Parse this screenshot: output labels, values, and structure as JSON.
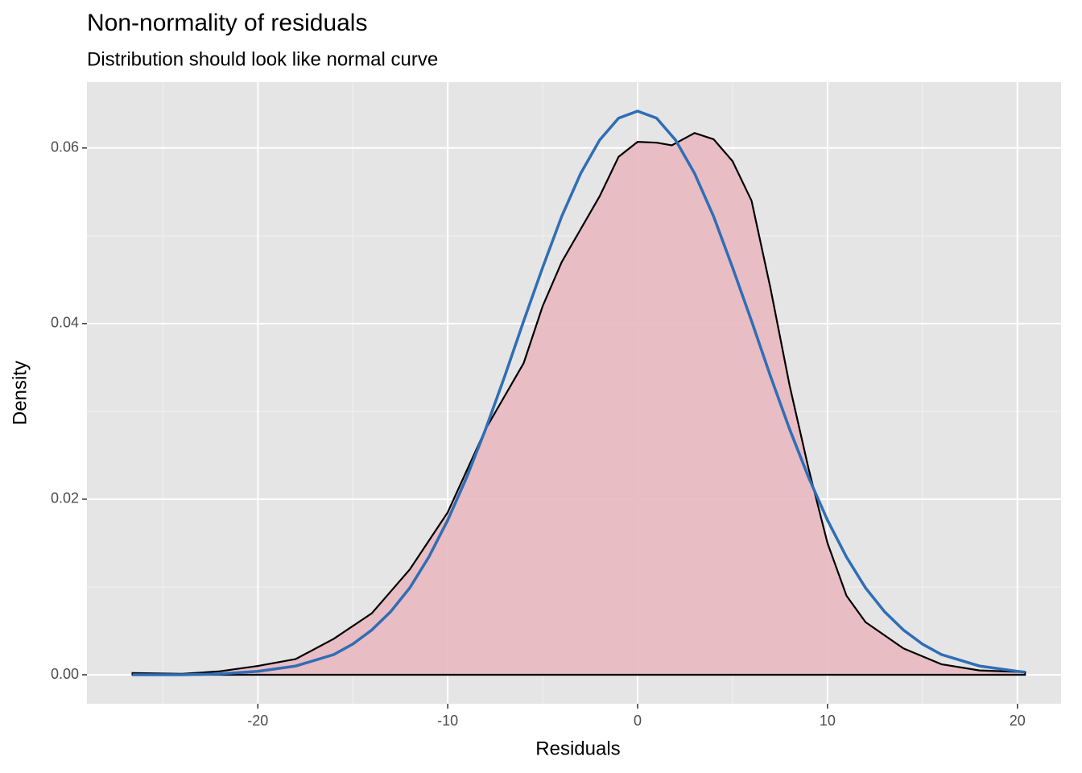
{
  "chart_data": {
    "type": "density",
    "title": "Non-normality of residuals",
    "subtitle": "Distribution should look like normal curve",
    "xlabel": "Residuals",
    "ylabel": "Density",
    "xlim": [
      -29,
      22.3
    ],
    "ylim": [
      -0.0033,
      0.0675
    ],
    "xticks": [
      -20,
      -10,
      0,
      10,
      20
    ],
    "xminor": [
      -25,
      -15,
      -5,
      5,
      15
    ],
    "yticks": [
      {
        "value": 0,
        "label": "0.00"
      },
      {
        "value": 0.02,
        "label": "0.02"
      },
      {
        "value": 0.04,
        "label": "0.04"
      },
      {
        "value": 0.06,
        "label": "0.06"
      }
    ],
    "yminor": [
      0.01,
      0.03,
      0.05
    ],
    "grid": true,
    "series": [
      {
        "name": "density",
        "color": "#000000",
        "fill": "#e8b8c0",
        "x": [
          -26.6,
          -24,
          -22,
          -20,
          -18,
          -16,
          -14,
          -12,
          -10,
          -8,
          -6,
          -5,
          -4,
          -2,
          -1,
          0,
          1,
          1.8,
          3,
          4,
          5,
          6,
          7,
          8,
          9,
          10,
          11,
          12,
          14,
          16,
          18,
          20.4
        ],
        "values": [
          0.0002,
          0.0001,
          0.0004,
          0.001,
          0.0018,
          0.0041,
          0.007,
          0.012,
          0.0185,
          0.028,
          0.0355,
          0.042,
          0.047,
          0.0545,
          0.059,
          0.0607,
          0.0606,
          0.0603,
          0.0617,
          0.061,
          0.0585,
          0.054,
          0.044,
          0.033,
          0.0235,
          0.015,
          0.009,
          0.006,
          0.003,
          0.0012,
          0.0005,
          0.0003
        ]
      },
      {
        "name": "normal",
        "color": "#2f6eb5",
        "x": [
          -26.6,
          -24,
          -22,
          -20,
          -18,
          -16,
          -15,
          -14,
          -13,
          -12,
          -11,
          -10,
          -9,
          -8,
          -7,
          -6,
          -5,
          -4,
          -3,
          -2,
          -1,
          0,
          1,
          2,
          3,
          4,
          5,
          6,
          7,
          8,
          9,
          10,
          11,
          12,
          13,
          14,
          15,
          16,
          18,
          20,
          20.4
        ],
        "values": [
          0,
          0,
          0.0001,
          0.0004,
          0.001,
          0.0023,
          0.0035,
          0.0051,
          0.0072,
          0.0099,
          0.0134,
          0.0176,
          0.0225,
          0.028,
          0.034,
          0.0403,
          0.0464,
          0.0522,
          0.0571,
          0.0609,
          0.0634,
          0.0642,
          0.0634,
          0.0609,
          0.0571,
          0.0522,
          0.0464,
          0.0403,
          0.034,
          0.028,
          0.0225,
          0.0176,
          0.0134,
          0.0099,
          0.0072,
          0.0051,
          0.0035,
          0.0023,
          0.001,
          0.0004,
          0.0003
        ]
      }
    ]
  }
}
